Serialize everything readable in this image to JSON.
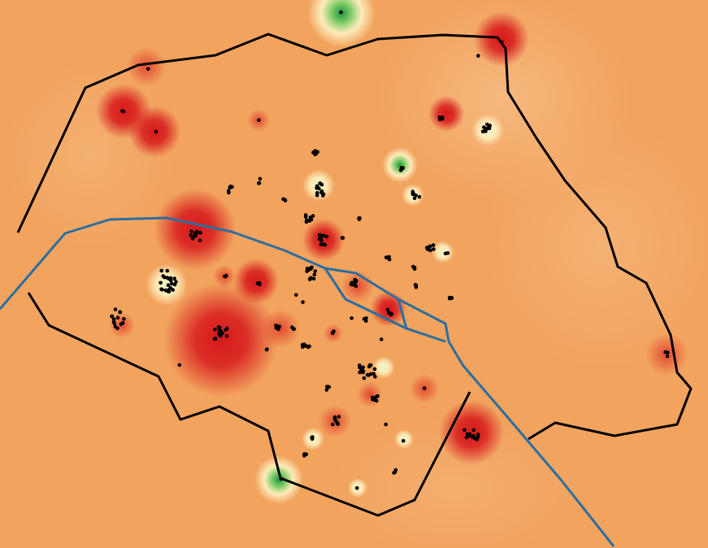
{
  "map": {
    "type": "heatmap-with-points",
    "colors": {
      "background": "#f2a35e",
      "hot": "#d7191c",
      "neutral": "#fffdd0",
      "cool": "#1a9641",
      "boundary": "#000000",
      "river": "#2c6e9f",
      "points": "#000000"
    },
    "legend": null
  }
}
